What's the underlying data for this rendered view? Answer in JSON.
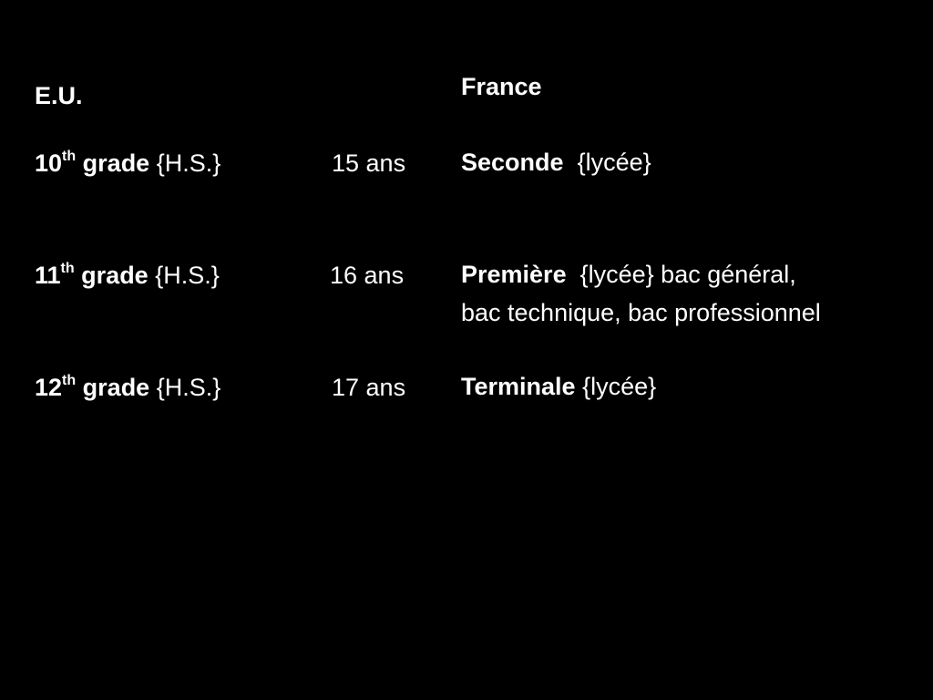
{
  "us": {
    "heading": "E.U.",
    "rows": [
      {
        "num": "10",
        "sup": "th",
        "grade": "grade",
        "school": "{H.S.}",
        "age": "15 ans"
      },
      {
        "num": "11",
        "sup": "th",
        "grade": "grade",
        "school": "{H.S.}",
        "age": "16 ans"
      },
      {
        "num": "12",
        "sup": "th",
        "grade": "grade",
        "school": "{H.S.}",
        "age": "17 ans"
      }
    ]
  },
  "france": {
    "heading": "France",
    "rows": [
      {
        "name": "Seconde",
        "detail": "{lycée}"
      },
      {
        "name": "Première",
        "detail": "{lycée} bac général,",
        "line2": "bac technique, bac professionnel"
      },
      {
        "name": "Terminale",
        "detail": "{lycée}"
      }
    ]
  }
}
